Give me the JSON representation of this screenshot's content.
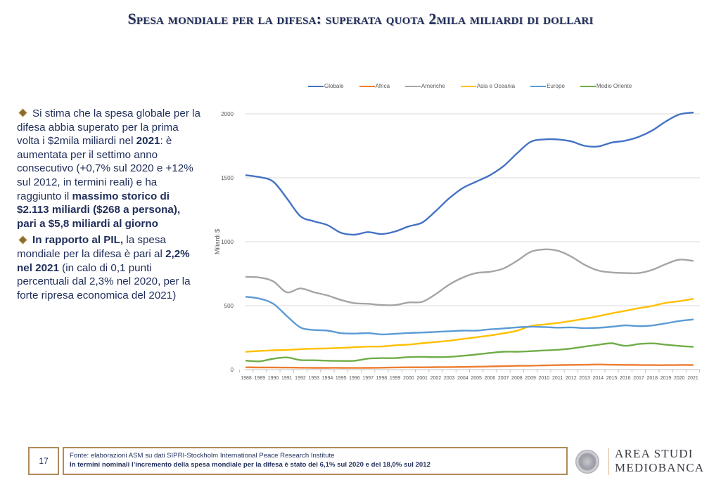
{
  "title": "Spesa mondiale per la difesa: superata quota 2mila miliardi di dollari",
  "bullets": [
    {
      "parts": [
        {
          "text": "Si stima che la spesa globale per la difesa abbia superato per la prima volta i $2mila miliardi nel ",
          "bold": false
        },
        {
          "text": "2021",
          "bold": true
        },
        {
          "text": ": è aumentata per il settimo anno consecutivo (+0,7% sul 2020 e +12% sul 2012, in termini reali) e ha  raggiunto il ",
          "bold": false
        },
        {
          "text": "massimo storico di $2.113 miliardi ($268 a persona), pari a $5,8 miliardi al giorno",
          "bold": true
        }
      ]
    },
    {
      "parts": [
        {
          "text": "In rapporto al PIL,",
          "bold": true
        },
        {
          "text": " la spesa mondiale per la difesa è pari al ",
          "bold": false
        },
        {
          "text": "2,2% nel 2021",
          "bold": true
        },
        {
          "text": " (in calo di 0,1 punti percentuali dal 2,3% nel 2020, per la forte ripresa economica del 2021)",
          "bold": false
        }
      ]
    }
  ],
  "chart_data": {
    "type": "line",
    "title": "",
    "xlabel": "",
    "ylabel": "Miliardi $",
    "ylim": [
      0,
      2000
    ],
    "yticks": [
      0,
      500,
      1000,
      1500,
      2000
    ],
    "grid": true,
    "legend_position": "top",
    "x": [
      "1988",
      "1989",
      "1990",
      "1991",
      "1992",
      "1993",
      "1994",
      "1995",
      "1996",
      "1997",
      "1998",
      "1999",
      "2000",
      "2001",
      "2002",
      "2003",
      "2004",
      "2005",
      "2006",
      "2007",
      "2008",
      "2009",
      "2010",
      "2011",
      "2012",
      "2013",
      "2014",
      "2015",
      "2016",
      "2017",
      "2018",
      "2019",
      "2020",
      "2021"
    ],
    "series": [
      {
        "name": "Globale",
        "color": "#4472c4",
        "values": [
          1520,
          1505,
          1470,
          1340,
          1200,
          1160,
          1130,
          1070,
          1055,
          1075,
          1060,
          1080,
          1120,
          1150,
          1240,
          1340,
          1420,
          1470,
          1520,
          1590,
          1690,
          1780,
          1800,
          1800,
          1785,
          1750,
          1745,
          1775,
          1790,
          1820,
          1870,
          1940,
          1995,
          2010
        ]
      },
      {
        "name": "Africa",
        "color": "#ed7d31",
        "values": [
          18,
          17,
          17,
          16,
          15,
          14,
          14,
          14,
          13,
          14,
          15,
          17,
          18,
          18,
          19,
          20,
          21,
          23,
          25,
          27,
          30,
          31,
          33,
          35,
          37,
          38,
          40,
          38,
          37,
          36,
          35,
          35,
          36,
          36
        ]
      },
      {
        "name": "Americhe",
        "color": "#a5a5a5",
        "values": [
          725,
          720,
          690,
          605,
          635,
          605,
          580,
          545,
          520,
          515,
          505,
          505,
          525,
          530,
          590,
          665,
          720,
          755,
          765,
          790,
          850,
          920,
          940,
          930,
          885,
          820,
          775,
          760,
          755,
          755,
          780,
          825,
          860,
          850
        ]
      },
      {
        "name": "Asia e Oceania",
        "color": "#ffc000",
        "values": [
          140,
          146,
          151,
          154,
          160,
          164,
          166,
          170,
          175,
          180,
          181,
          190,
          196,
          206,
          216,
          226,
          240,
          253,
          267,
          284,
          304,
          340,
          353,
          365,
          380,
          398,
          418,
          440,
          460,
          480,
          498,
          522,
          535,
          553
        ]
      },
      {
        "name": "Europe",
        "color": "#5b9bd5",
        "values": [
          570,
          555,
          515,
          420,
          330,
          310,
          305,
          285,
          282,
          285,
          275,
          280,
          287,
          290,
          295,
          300,
          305,
          305,
          315,
          322,
          330,
          335,
          333,
          328,
          330,
          325,
          327,
          335,
          346,
          340,
          345,
          362,
          380,
          392
        ]
      },
      {
        "name": "Medio Oriente",
        "color": "#70ad47",
        "values": [
          70,
          65,
          85,
          95,
          75,
          73,
          70,
          68,
          69,
          86,
          90,
          90,
          98,
          100,
          98,
          100,
          108,
          118,
          130,
          140,
          140,
          144,
          150,
          155,
          165,
          180,
          194,
          206,
          186,
          200,
          205,
          195,
          185,
          178
        ]
      }
    ]
  },
  "footer": {
    "page_number": "17",
    "source": "Fonte: elaborazioni ASM su dati SIPRI-Stockholm International Peace Research Institute",
    "note": "In termini nominali l’incremento della spesa mondiale per la difesa è stato del 6,1% sul 2020 e del 18,0% sul 2012"
  },
  "logo": {
    "line1": "AREA STUDI",
    "line2": "MEDIOBANCA",
    "icon": "seal-icon"
  }
}
